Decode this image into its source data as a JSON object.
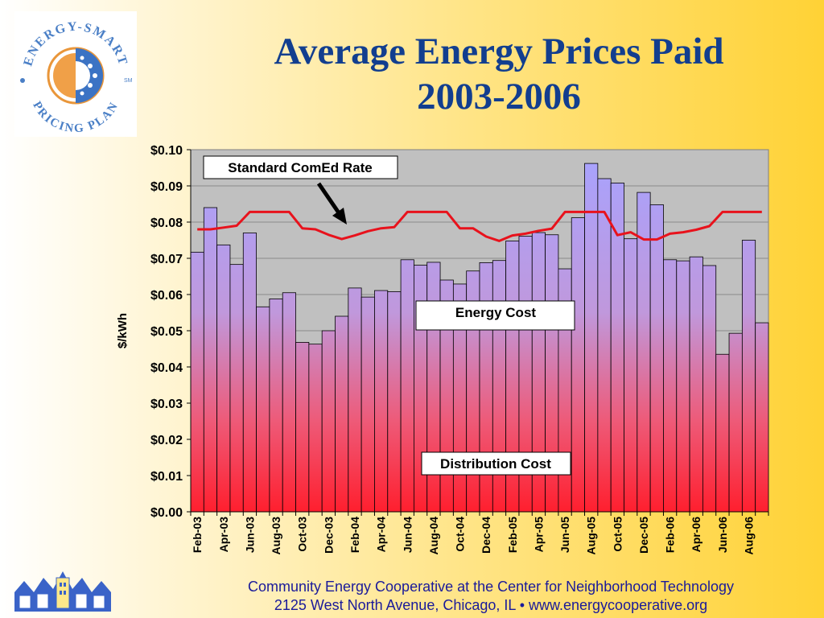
{
  "slide": {
    "title_line1": "Average Energy Prices Paid",
    "title_line2": "2003-2006",
    "logo_text": "ENERGY-SMART PRICING PLAN",
    "logo_mark": "SM",
    "footer_line1": "Community Energy Cooperative at the Center for Neighborhood Technology",
    "footer_line2": "2125 West North Avenue, Chicago, IL • www.energycooperative.org"
  },
  "colors": {
    "bar_top": "#a7a3ff",
    "bar_bottom": "#ff1f2e",
    "line": "#e8121c",
    "plot_bg": "#c0c0c0",
    "title": "#123e8f"
  },
  "chart_data": {
    "type": "bar",
    "ylabel": "$/kWh",
    "ylim": [
      0,
      0.1
    ],
    "yticks": [
      "$0.00",
      "$0.01",
      "$0.02",
      "$0.03",
      "$0.04",
      "$0.05",
      "$0.06",
      "$0.07",
      "$0.08",
      "$0.09",
      "$0.10"
    ],
    "grid": true,
    "categories": [
      "Feb-03",
      "Mar-03",
      "Apr-03",
      "May-03",
      "Jun-03",
      "Jul-03",
      "Aug-03",
      "Sep-03",
      "Oct-03",
      "Nov-03",
      "Dec-03",
      "Jan-04",
      "Feb-04",
      "Mar-04",
      "Apr-04",
      "May-04",
      "Jun-04",
      "Jul-04",
      "Aug-04",
      "Sep-04",
      "Oct-04",
      "Nov-04",
      "Dec-04",
      "Jan-05",
      "Feb-05",
      "Mar-05",
      "Apr-05",
      "May-05",
      "Jun-05",
      "Jul-05",
      "Aug-05",
      "Sep-05",
      "Oct-05",
      "Nov-05",
      "Dec-05",
      "Jan-06",
      "Feb-06",
      "Mar-06",
      "Apr-06",
      "May-06",
      "Jun-06",
      "Jul-06",
      "Aug-06",
      "Sep-06"
    ],
    "tick_labels": [
      "Feb-03",
      "Apr-03",
      "Jun-03",
      "Aug-03",
      "Oct-03",
      "Dec-03",
      "Feb-04",
      "Apr-04",
      "Jun-04",
      "Aug-04",
      "Oct-04",
      "Dec-04",
      "Feb-05",
      "Apr-05",
      "Jun-05",
      "Aug-05",
      "Oct-05",
      "Dec-05",
      "Feb-06",
      "Apr-06",
      "Jun-06",
      "Aug-06"
    ],
    "series": [
      {
        "name": "Energy Cost",
        "kind": "bar",
        "values": [
          0.0717,
          0.084,
          0.0737,
          0.0683,
          0.077,
          0.0566,
          0.0588,
          0.0605,
          0.0468,
          0.0463,
          0.05,
          0.054,
          0.0618,
          0.0593,
          0.0611,
          0.0608,
          0.0696,
          0.0681,
          0.0689,
          0.064,
          0.0629,
          0.0665,
          0.0688,
          0.0694,
          0.0748,
          0.0761,
          0.0771,
          0.0765,
          0.0671,
          0.0812,
          0.0962,
          0.092,
          0.0908,
          0.0754,
          0.0882,
          0.0848,
          0.0696,
          0.0693,
          0.0704,
          0.068,
          0.0435,
          0.0493,
          0.075,
          0.0522
        ]
      },
      {
        "name": "Standard ComEd Rate",
        "kind": "line",
        "values": [
          0.078,
          0.078,
          0.0785,
          0.079,
          0.0828,
          0.0828,
          0.0828,
          0.0828,
          0.0783,
          0.078,
          0.0765,
          0.0753,
          0.0763,
          0.0775,
          0.0783,
          0.0786,
          0.0828,
          0.0828,
          0.0828,
          0.0828,
          0.0783,
          0.0783,
          0.076,
          0.0748,
          0.0763,
          0.0768,
          0.0776,
          0.0782,
          0.0828,
          0.0828,
          0.0828,
          0.0828,
          0.0764,
          0.0772,
          0.0752,
          0.0752,
          0.0768,
          0.0772,
          0.0779,
          0.0789,
          0.0828,
          0.0828,
          0.0828,
          0.0828
        ]
      }
    ],
    "annotations": {
      "standard_rate": "Standard ComEd Rate",
      "energy_cost": "Energy Cost",
      "distribution_cost": "Distribution Cost"
    }
  }
}
